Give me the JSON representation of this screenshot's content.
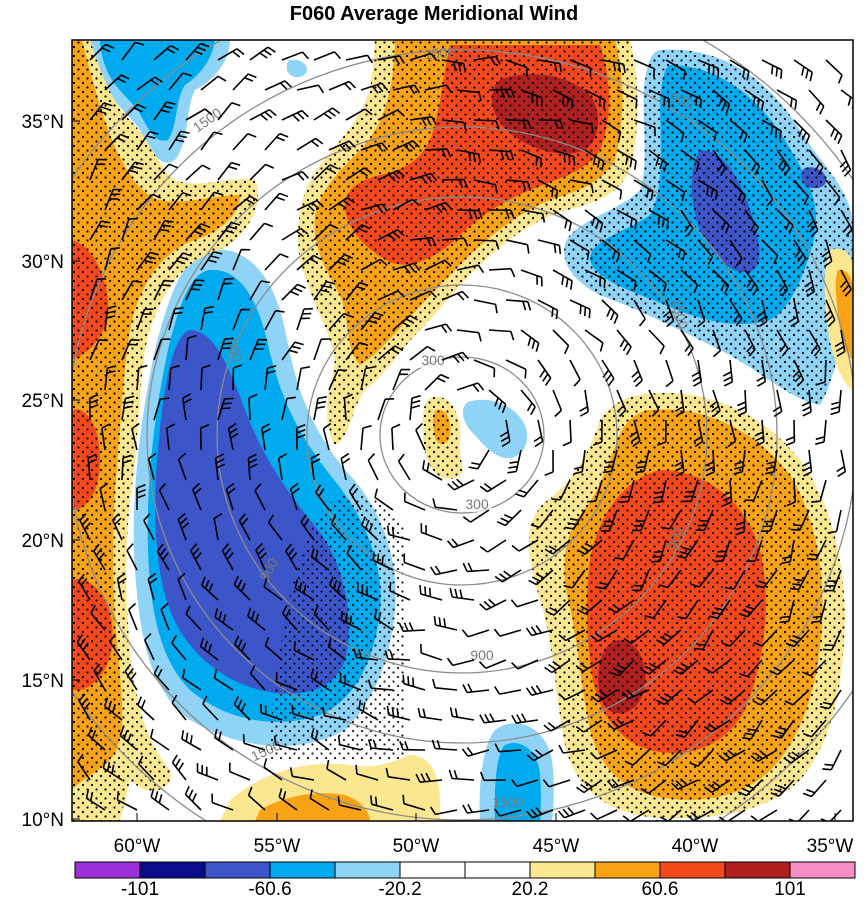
{
  "title": "F060 Average Meridional Wind",
  "lat_labels": [
    "35°N",
    "30°N",
    "25°N",
    "20°N",
    "15°N",
    "10°N"
  ],
  "lon_labels": [
    "60°W",
    "55°W",
    "50°W",
    "45°W",
    "40°W",
    "35°W"
  ],
  "ring_labels": [
    {
      "text": "300"
    },
    {
      "text": "300"
    },
    {
      "text": "900"
    },
    {
      "text": "900"
    },
    {
      "text": "900"
    },
    {
      "text": "900"
    },
    {
      "text": "900"
    },
    {
      "text": "1500"
    },
    {
      "text": "1500"
    },
    {
      "text": "1500"
    },
    {
      "text": "1500"
    },
    {
      "text": "1500"
    }
  ],
  "colorbar": {
    "colors": [
      "#9b30d8",
      "#0b0b8c",
      "#3c55c8",
      "#00aaee",
      "#8fd3f7",
      "#ffffff",
      "#ffffff",
      "#fbe790",
      "#f8a315",
      "#f5481c",
      "#b0201f",
      "#f58fc3"
    ],
    "labels": [
      "-101",
      "-60.6",
      "-20.2",
      "20.2",
      "60.6",
      "101"
    ]
  },
  "colors": {
    "strong_neg": "#3c55c8",
    "mid_neg": "#00aaee",
    "weak_neg": "#8fd3f7",
    "weak_pos": "#fbe790",
    "mid_pos": "#f8a315",
    "strong_pos": "#f5481c",
    "max_pos": "#b0201f",
    "ring": "#8c8c8c"
  }
}
